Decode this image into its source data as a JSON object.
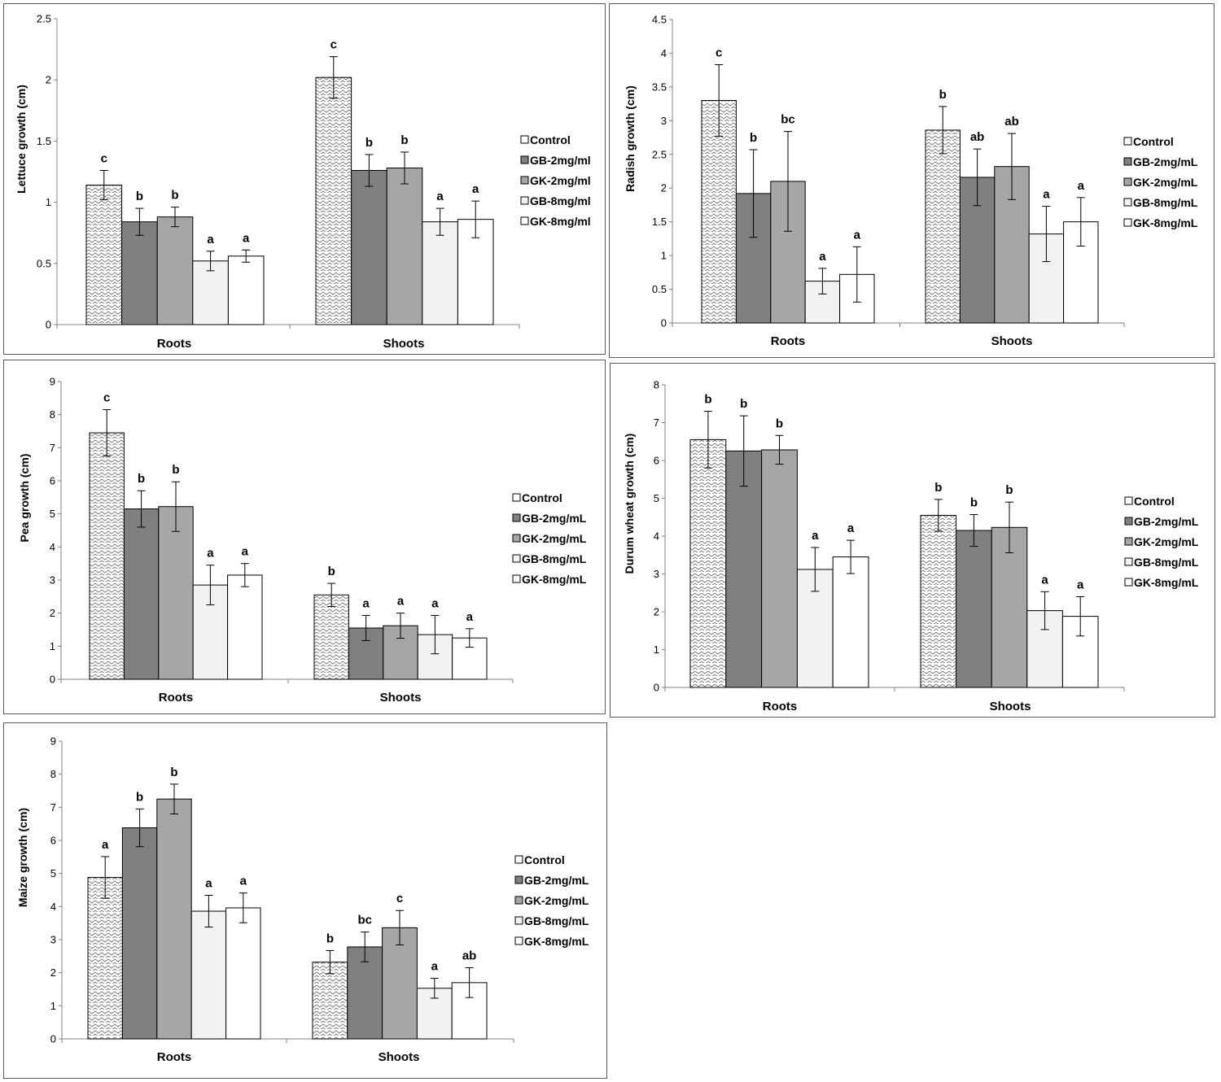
{
  "legend_swatches": {
    "Control": "#ffffff",
    "GB-2mg": "#808080",
    "GK-2mg": "#a6a6a6",
    "GB-8mg": "#f2f2f2",
    "GK-8mg": "#ffffff"
  },
  "chart_data": [
    {
      "type": "bar",
      "ylabel": "Lettuce growth (cm)",
      "xlabel": "",
      "ylim": [
        0,
        2.5
      ],
      "yticks": [
        "0",
        "0.5",
        "1",
        "1.5",
        "2",
        "2.5"
      ],
      "categories": [
        "Roots",
        "Shoots"
      ],
      "legend_labels": [
        "Control",
        "GB-2mg/ml",
        "GK-2mg/ml",
        "GB-8mg/ml",
        "GK-8mg/ml"
      ],
      "series": [
        {
          "name": "Control",
          "values": [
            1.14,
            2.02
          ],
          "errors": [
            0.12,
            0.17
          ],
          "letters": [
            "c",
            "c"
          ]
        },
        {
          "name": "GB-2mg/ml",
          "values": [
            0.84,
            1.26
          ],
          "errors": [
            0.11,
            0.13
          ],
          "letters": [
            "b",
            "b"
          ]
        },
        {
          "name": "GK-2mg/ml",
          "values": [
            0.88,
            1.28
          ],
          "errors": [
            0.08,
            0.13
          ],
          "letters": [
            "b",
            "b"
          ]
        },
        {
          "name": "GB-8mg/ml",
          "values": [
            0.52,
            0.84
          ],
          "errors": [
            0.08,
            0.11
          ],
          "letters": [
            "a",
            "a"
          ]
        },
        {
          "name": "GK-8mg/ml",
          "values": [
            0.56,
            0.86
          ],
          "errors": [
            0.05,
            0.15
          ],
          "letters": [
            "a",
            "a"
          ]
        }
      ]
    },
    {
      "type": "bar",
      "ylabel": "Radish growth (cm)",
      "xlabel": "",
      "ylim": [
        0,
        4.5
      ],
      "yticks": [
        "0",
        "0.5",
        "1",
        "1.5",
        "2",
        "2.5",
        "3",
        "3.5",
        "4",
        "4.5"
      ],
      "categories": [
        "Roots",
        "Shoots"
      ],
      "legend_labels": [
        "Control",
        "GB-2mg/mL",
        "GK-2mg/mL",
        "GB-8mg/mL",
        "GK-8mg/mL"
      ],
      "series": [
        {
          "name": "Control",
          "values": [
            3.3,
            2.86
          ],
          "errors": [
            0.53,
            0.35
          ],
          "letters": [
            "c",
            "b"
          ]
        },
        {
          "name": "GB-2mg/mL",
          "values": [
            1.92,
            2.16
          ],
          "errors": [
            0.65,
            0.42
          ],
          "letters": [
            "b",
            "ab"
          ]
        },
        {
          "name": "GK-2mg/mL",
          "values": [
            2.1,
            2.32
          ],
          "errors": [
            0.74,
            0.49
          ],
          "letters": [
            "bc",
            "ab"
          ]
        },
        {
          "name": "GB-8mg/mL",
          "values": [
            0.62,
            1.32
          ],
          "errors": [
            0.19,
            0.41
          ],
          "letters": [
            "a",
            "a"
          ]
        },
        {
          "name": "GK-8mg/mL",
          "values": [
            0.72,
            1.5
          ],
          "errors": [
            0.41,
            0.36
          ],
          "letters": [
            "a",
            "a"
          ]
        }
      ]
    },
    {
      "type": "bar",
      "ylabel": "Pea growth (cm)",
      "xlabel": "",
      "ylim": [
        0,
        9
      ],
      "yticks": [
        "0",
        "1",
        "2",
        "3",
        "4",
        "5",
        "6",
        "7",
        "8",
        "9"
      ],
      "categories": [
        "Roots",
        "Shoots"
      ],
      "legend_labels": [
        "Control",
        "GB-2mg/mL",
        "GK-2mg/mL",
        "GB-8mg/mL",
        "GK-8mg/mL"
      ],
      "series": [
        {
          "name": "Control",
          "values": [
            7.45,
            2.55
          ],
          "errors": [
            0.7,
            0.35
          ],
          "letters": [
            "c",
            "b"
          ]
        },
        {
          "name": "GB-2mg/mL",
          "values": [
            5.15,
            1.55
          ],
          "errors": [
            0.55,
            0.38
          ],
          "letters": [
            "b",
            "a"
          ]
        },
        {
          "name": "GK-2mg/mL",
          "values": [
            5.22,
            1.62
          ],
          "errors": [
            0.75,
            0.38
          ],
          "letters": [
            "b",
            "a"
          ]
        },
        {
          "name": "GB-8mg/mL",
          "values": [
            2.85,
            1.35
          ],
          "errors": [
            0.6,
            0.58
          ],
          "letters": [
            "a",
            "a"
          ]
        },
        {
          "name": "GK-8mg/mL",
          "values": [
            3.15,
            1.25
          ],
          "errors": [
            0.35,
            0.28
          ],
          "letters": [
            "a",
            "a"
          ]
        }
      ]
    },
    {
      "type": "bar",
      "ylabel": "Durum wheat growth (cm)",
      "xlabel": "",
      "ylim": [
        0,
        8
      ],
      "yticks": [
        "0",
        "1",
        "2",
        "3",
        "4",
        "5",
        "6",
        "7",
        "8"
      ],
      "categories": [
        "Roots",
        "Shoots"
      ],
      "legend_labels": [
        "Control",
        "GB-2mg/mL",
        "GK-2mg/mL",
        "GB-8mg/mL",
        "GK-8mg/mL"
      ],
      "series": [
        {
          "name": "Control",
          "values": [
            6.55,
            4.55
          ],
          "errors": [
            0.75,
            0.42
          ],
          "letters": [
            "b",
            "b"
          ]
        },
        {
          "name": "GB-2mg/mL",
          "values": [
            6.25,
            4.15
          ],
          "errors": [
            0.93,
            0.42
          ],
          "letters": [
            "b",
            "b"
          ]
        },
        {
          "name": "GK-2mg/mL",
          "values": [
            6.28,
            4.23
          ],
          "errors": [
            0.38,
            0.67
          ],
          "letters": [
            "b",
            "b"
          ]
        },
        {
          "name": "GB-8mg/mL",
          "values": [
            3.12,
            2.03
          ],
          "errors": [
            0.58,
            0.5
          ],
          "letters": [
            "a",
            "a"
          ]
        },
        {
          "name": "GK-8mg/mL",
          "values": [
            3.45,
            1.88
          ],
          "errors": [
            0.44,
            0.52
          ],
          "letters": [
            "a",
            "a"
          ]
        }
      ]
    },
    {
      "type": "bar",
      "ylabel": "Maize growth (cm)",
      "xlabel": "",
      "ylim": [
        0,
        9
      ],
      "yticks": [
        "0",
        "1",
        "2",
        "3",
        "4",
        "5",
        "6",
        "7",
        "8",
        "9"
      ],
      "categories": [
        "Roots",
        "Shoots"
      ],
      "legend_labels": [
        "Control",
        "GB-2mg/mL",
        "GK-2mg/mL",
        "GB-8mg/mL",
        "GK-8mg/mL"
      ],
      "series": [
        {
          "name": "Control",
          "values": [
            4.88,
            2.32
          ],
          "errors": [
            0.63,
            0.35
          ],
          "letters": [
            "a",
            "b"
          ]
        },
        {
          "name": "GB-2mg/mL",
          "values": [
            6.38,
            2.78
          ],
          "errors": [
            0.57,
            0.45
          ],
          "letters": [
            "b",
            "bc"
          ]
        },
        {
          "name": "GK-2mg/mL",
          "values": [
            7.25,
            3.36
          ],
          "errors": [
            0.45,
            0.52
          ],
          "letters": [
            "b",
            "c"
          ]
        },
        {
          "name": "GB-8mg/mL",
          "values": [
            3.86,
            1.53
          ],
          "errors": [
            0.48,
            0.3
          ],
          "letters": [
            "a",
            "a"
          ]
        },
        {
          "name": "GK-8mg/mL",
          "values": [
            3.96,
            1.7
          ],
          "errors": [
            0.45,
            0.45
          ],
          "letters": [
            "a",
            "ab"
          ]
        }
      ]
    }
  ]
}
